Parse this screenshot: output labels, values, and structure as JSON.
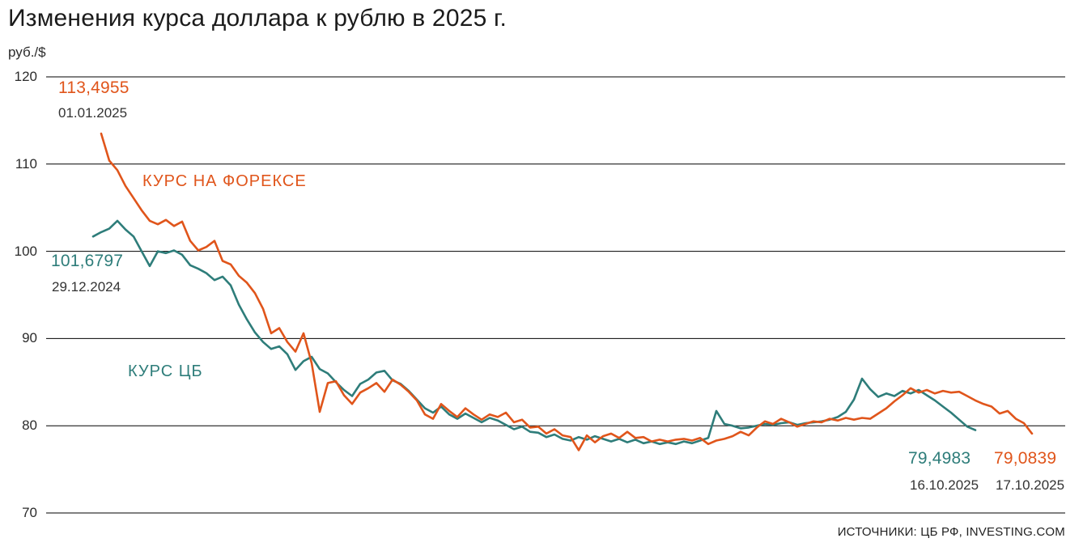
{
  "page": {
    "title": "Изменения курса доллара к рублю в 2025 г.",
    "y_axis_unit": "руб./$",
    "source": "ИСТОЧНИКИ: ЦБ РФ, INVESTING.COM"
  },
  "colors": {
    "forex": "#E0551B",
    "cb": "#2E7D7A",
    "grid": "#000000",
    "text": "#1B1B1B",
    "muted": "#333333"
  },
  "annotations": {
    "forex_start": {
      "value": "113,4955",
      "date": "01.01.2025"
    },
    "cb_start": {
      "value": "101,6797",
      "date": "29.12.2024"
    },
    "forex_label": "КУРС НА ФОРЕКСЕ",
    "cb_label": "КУРС ЦБ",
    "cb_end": {
      "value": "79,4983",
      "date": "16.10.2025"
    },
    "forex_end": {
      "value": "79,0839",
      "date": "17.10.2025"
    }
  },
  "chart_data": {
    "type": "line",
    "title": "Изменения курса доллара к рублю в 2025 г.",
    "ylabel": "руб./$",
    "ylim": [
      70,
      120
    ],
    "yticks": [
      120,
      110,
      100,
      90,
      80,
      70
    ],
    "grid": "horizontal",
    "legend_position": "inline-labels",
    "series": [
      {
        "id": "cb",
        "name": "КУРС ЦБ",
        "color": "#2E7D7A",
        "start_date": "29.12.2024",
        "end_date": "16.10.2025",
        "start_value": 101.6797,
        "end_value": 79.4983,
        "x_start_frac": 0.0461,
        "x_end_frac": 0.9118,
        "values": [
          101.7,
          102.2,
          102.6,
          103.5,
          102.5,
          101.7,
          100.0,
          98.3,
          100.0,
          99.8,
          100.1,
          99.6,
          98.4,
          98.0,
          97.5,
          96.7,
          97.1,
          96.1,
          93.9,
          92.2,
          90.7,
          89.6,
          88.8,
          89.1,
          88.2,
          86.4,
          87.4,
          87.9,
          86.5,
          86.0,
          85.0,
          84.1,
          83.4,
          84.8,
          85.3,
          86.1,
          86.3,
          85.2,
          84.8,
          84.0,
          83.0,
          82.0,
          81.5,
          82.2,
          81.3,
          80.8,
          81.4,
          80.9,
          80.4,
          80.9,
          80.6,
          80.1,
          79.6,
          79.9,
          79.3,
          79.2,
          78.7,
          79.0,
          78.5,
          78.3,
          78.7,
          78.4,
          78.8,
          78.5,
          78.2,
          78.5,
          78.1,
          78.4,
          78.0,
          78.2,
          77.9,
          78.1,
          77.9,
          78.2,
          78.0,
          78.3,
          78.6,
          81.7,
          80.2,
          80.0,
          79.7,
          79.8,
          80.0,
          80.2,
          80.1,
          80.3,
          80.4,
          80.1,
          80.3,
          80.4,
          80.5,
          80.7,
          81.0,
          81.6,
          83.0,
          85.4,
          84.2,
          83.3,
          83.7,
          83.4,
          84.0,
          83.7,
          84.1,
          83.5,
          82.9,
          82.2,
          81.5,
          80.7,
          79.9,
          79.5
        ]
      },
      {
        "id": "forex",
        "name": "КУРС НА ФОРЕКСЕ",
        "color": "#E0551B",
        "start_date": "01.01.2025",
        "end_date": "17.10.2025",
        "start_value": 113.4955,
        "end_value": 79.0839,
        "x_start_frac": 0.054,
        "x_end_frac": 0.9674,
        "values": [
          113.5,
          110.4,
          109.3,
          107.5,
          106.1,
          104.7,
          103.5,
          103.1,
          103.6,
          102.9,
          103.4,
          101.2,
          100.1,
          100.5,
          101.2,
          98.9,
          98.5,
          97.2,
          96.4,
          95.2,
          93.4,
          90.6,
          91.2,
          89.6,
          88.5,
          90.6,
          87.2,
          81.6,
          84.9,
          85.1,
          83.5,
          82.5,
          83.8,
          84.3,
          84.9,
          83.9,
          85.3,
          84.7,
          83.9,
          82.9,
          81.3,
          80.8,
          82.5,
          81.7,
          81.0,
          82.0,
          81.3,
          80.7,
          81.3,
          81.0,
          81.5,
          80.4,
          80.7,
          79.8,
          79.9,
          79.1,
          79.6,
          78.9,
          78.7,
          77.2,
          78.9,
          78.1,
          78.8,
          79.1,
          78.6,
          79.3,
          78.6,
          78.7,
          78.2,
          78.4,
          78.2,
          78.4,
          78.5,
          78.3,
          78.6,
          77.9,
          78.3,
          78.5,
          78.8,
          79.3,
          78.9,
          79.8,
          80.5,
          80.2,
          80.8,
          80.4,
          79.9,
          80.2,
          80.5,
          80.4,
          80.8,
          80.6,
          80.9,
          80.7,
          80.9,
          80.8,
          81.4,
          82.0,
          82.8,
          83.5,
          84.3,
          83.8,
          84.1,
          83.7,
          84.0,
          83.8,
          83.9,
          83.4,
          82.9,
          82.5,
          82.2,
          81.4,
          81.7,
          80.8,
          80.3,
          79.1
        ]
      }
    ]
  }
}
